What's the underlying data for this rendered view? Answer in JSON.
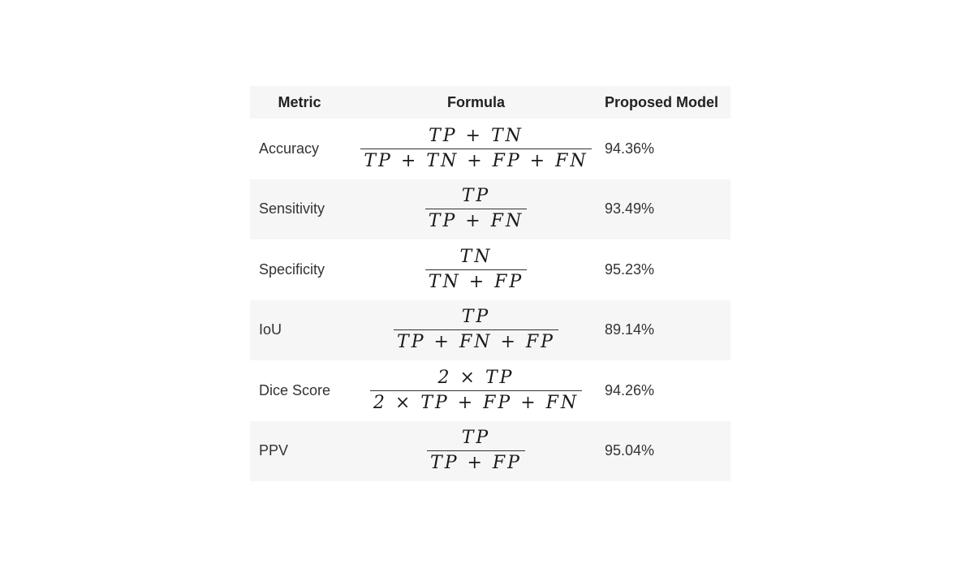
{
  "table": {
    "headers": {
      "metric": "Metric",
      "formula": "Formula",
      "value": "Proposed Model"
    },
    "rows": [
      {
        "metric": "Accuracy",
        "numerator": "TP + TN",
        "denominator": "TP + TN + FP + FN",
        "value": "94.36%"
      },
      {
        "metric": "Sensitivity",
        "numerator": "TP",
        "denominator": "TP + FN",
        "value": "93.49%"
      },
      {
        "metric": "Specificity",
        "numerator": "TN",
        "denominator": "TN + FP",
        "value": "95.23%"
      },
      {
        "metric": "IoU",
        "numerator": "TP",
        "denominator": "TP + FN + FP",
        "value": "89.14%"
      },
      {
        "metric": "Dice Score",
        "numerator": "2 × TP",
        "denominator": "2 × TP + FP + FN",
        "value": "94.26%"
      },
      {
        "metric": "PPV",
        "numerator": "TP",
        "denominator": "TP + FP",
        "value": "95.04%"
      }
    ]
  }
}
